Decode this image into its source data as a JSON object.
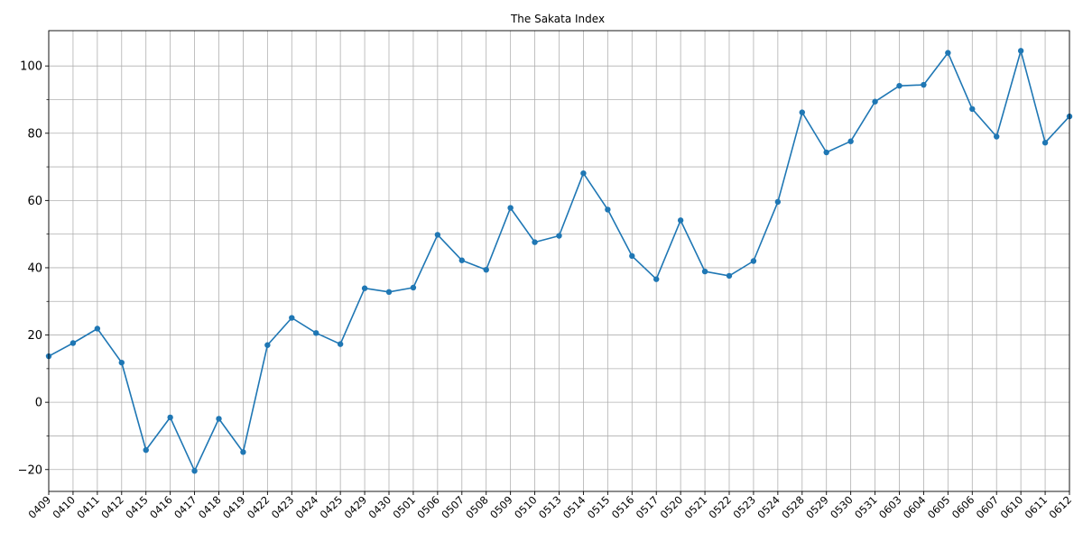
{
  "chart_data": {
    "type": "line",
    "title": "The Sakata Index",
    "xlabel": "",
    "ylabel": "",
    "categories": [
      "0409",
      "0410",
      "0411",
      "0412",
      "0415",
      "0416",
      "0417",
      "0418",
      "0419",
      "0422",
      "0423",
      "0424",
      "0425",
      "0429",
      "0430",
      "0501",
      "0506",
      "0507",
      "0508",
      "0509",
      "0510",
      "0513",
      "0514",
      "0515",
      "0516",
      "0517",
      "0520",
      "0521",
      "0522",
      "0523",
      "0524",
      "0528",
      "0529",
      "0530",
      "0531",
      "0603",
      "0604",
      "0605",
      "0606",
      "0607",
      "0610",
      "0611",
      "0612"
    ],
    "series": [
      {
        "values": [
          13.7,
          17.6,
          21.9,
          11.8,
          -14.2,
          -4.5,
          -20.4,
          -4.9,
          -14.8,
          17.0,
          25.1,
          20.6,
          17.3,
          33.9,
          32.8,
          34.1,
          49.8,
          42.2,
          39.4,
          57.8,
          47.6,
          49.5,
          68.1,
          57.3,
          43.5,
          36.6,
          54.1,
          38.9,
          37.6,
          42.0,
          59.6,
          86.2,
          74.3,
          77.6,
          89.4,
          94.1,
          94.4,
          103.9,
          87.2,
          79.0,
          104.5,
          77.2,
          85.0
        ],
        "color": "#1f77b4"
      }
    ],
    "ylim": [
      -26.5,
      110.5
    ],
    "yticks": [
      -20,
      0,
      20,
      40,
      60,
      80,
      100
    ],
    "yticks_minor": [
      -10,
      10,
      30,
      50,
      70,
      90
    ],
    "grid": true,
    "marker": "circle"
  }
}
